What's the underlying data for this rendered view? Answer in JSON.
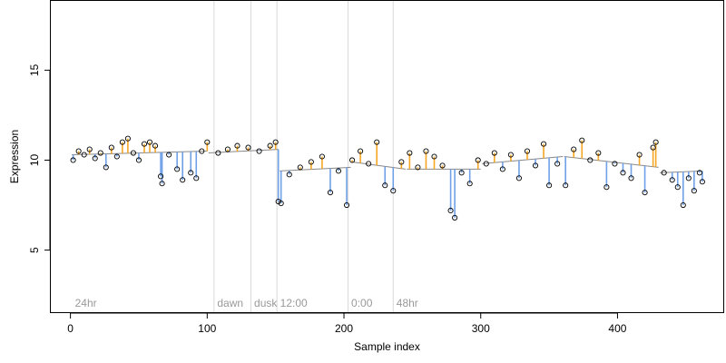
{
  "chart_data": {
    "type": "scatter",
    "title": "",
    "xlabel": "Sample index",
    "ylabel": "Expression",
    "xlim": [
      -15,
      478
    ],
    "ylim": [
      1.5,
      18.9
    ],
    "x_ticks": [
      0,
      100,
      200,
      300,
      400
    ],
    "y_ticks": [
      5,
      10,
      15
    ],
    "grid": false,
    "colors": {
      "points_edge": "#000000",
      "residual_positive": "#f5a623",
      "residual_negative": "#6fa0e8",
      "vertical_markers": "#d9d9d9",
      "annotation_text": "#999999"
    },
    "annotations": [
      {
        "label": "24hr",
        "x": 2
      },
      {
        "label": "dawn",
        "x": 106
      },
      {
        "label": "dusk",
        "x": 133
      },
      {
        "label": "12:00",
        "x": 152
      },
      {
        "label": "0:00",
        "x": 204
      },
      {
        "label": "48hr",
        "x": 237
      }
    ],
    "vertical_lines": [
      105,
      132,
      151,
      203,
      236
    ],
    "fit_segments": [
      {
        "x": [
          1,
          100
        ],
        "y": [
          10.3,
          10.5
        ]
      },
      {
        "x": [
          101,
          152
        ],
        "y": [
          10.4,
          10.6
        ]
      },
      {
        "x": [
          153,
          205
        ],
        "y": [
          9.4,
          9.6
        ]
      },
      {
        "x": [
          206,
          245
        ],
        "y": [
          9.9,
          9.5
        ]
      },
      {
        "x": [
          246,
          300
        ],
        "y": [
          9.5,
          9.5
        ]
      },
      {
        "x": [
          301,
          360
        ],
        "y": [
          9.8,
          10.2
        ]
      },
      {
        "x": [
          361,
          430
        ],
        "y": [
          10.2,
          9.6
        ]
      },
      {
        "x": [
          431,
          462
        ],
        "y": [
          9.3,
          9.4
        ]
      }
    ],
    "points_sampled": [
      {
        "x": 2,
        "y": 10.0
      },
      {
        "x": 6,
        "y": 10.5
      },
      {
        "x": 10,
        "y": 10.3
      },
      {
        "x": 14,
        "y": 10.6
      },
      {
        "x": 18,
        "y": 10.1
      },
      {
        "x": 22,
        "y": 10.4
      },
      {
        "x": 26,
        "y": 9.6
      },
      {
        "x": 30,
        "y": 10.7
      },
      {
        "x": 34,
        "y": 10.2
      },
      {
        "x": 38,
        "y": 11.0
      },
      {
        "x": 42,
        "y": 11.2
      },
      {
        "x": 46,
        "y": 10.4
      },
      {
        "x": 50,
        "y": 10.0
      },
      {
        "x": 54,
        "y": 10.9
      },
      {
        "x": 58,
        "y": 11.0
      },
      {
        "x": 62,
        "y": 10.8
      },
      {
        "x": 66,
        "y": 9.1
      },
      {
        "x": 67,
        "y": 8.7
      },
      {
        "x": 72,
        "y": 10.3
      },
      {
        "x": 78,
        "y": 9.5
      },
      {
        "x": 82,
        "y": 8.9
      },
      {
        "x": 88,
        "y": 9.3
      },
      {
        "x": 92,
        "y": 9.0
      },
      {
        "x": 96,
        "y": 10.5
      },
      {
        "x": 100,
        "y": 11.0
      },
      {
        "x": 108,
        "y": 10.4
      },
      {
        "x": 115,
        "y": 10.6
      },
      {
        "x": 122,
        "y": 10.8
      },
      {
        "x": 130,
        "y": 10.7
      },
      {
        "x": 138,
        "y": 10.5
      },
      {
        "x": 146,
        "y": 10.8
      },
      {
        "x": 150,
        "y": 11.0
      },
      {
        "x": 152,
        "y": 7.7
      },
      {
        "x": 154,
        "y": 7.6
      },
      {
        "x": 160,
        "y": 9.2
      },
      {
        "x": 168,
        "y": 9.6
      },
      {
        "x": 176,
        "y": 9.9
      },
      {
        "x": 184,
        "y": 10.2
      },
      {
        "x": 190,
        "y": 8.2
      },
      {
        "x": 196,
        "y": 9.4
      },
      {
        "x": 202,
        "y": 7.5
      },
      {
        "x": 206,
        "y": 10.0
      },
      {
        "x": 212,
        "y": 10.5
      },
      {
        "x": 218,
        "y": 9.8
      },
      {
        "x": 224,
        "y": 11.0
      },
      {
        "x": 230,
        "y": 8.6
      },
      {
        "x": 236,
        "y": 8.3
      },
      {
        "x": 242,
        "y": 9.9
      },
      {
        "x": 248,
        "y": 10.4
      },
      {
        "x": 254,
        "y": 9.6
      },
      {
        "x": 260,
        "y": 10.5
      },
      {
        "x": 266,
        "y": 10.2
      },
      {
        "x": 272,
        "y": 9.7
      },
      {
        "x": 278,
        "y": 7.2
      },
      {
        "x": 281,
        "y": 6.8
      },
      {
        "x": 286,
        "y": 9.3
      },
      {
        "x": 292,
        "y": 8.7
      },
      {
        "x": 298,
        "y": 10.0
      },
      {
        "x": 304,
        "y": 9.8
      },
      {
        "x": 310,
        "y": 10.4
      },
      {
        "x": 316,
        "y": 9.5
      },
      {
        "x": 322,
        "y": 10.3
      },
      {
        "x": 328,
        "y": 9.0
      },
      {
        "x": 334,
        "y": 10.5
      },
      {
        "x": 340,
        "y": 9.7
      },
      {
        "x": 346,
        "y": 10.9
      },
      {
        "x": 350,
        "y": 8.6
      },
      {
        "x": 356,
        "y": 9.8
      },
      {
        "x": 362,
        "y": 8.6
      },
      {
        "x": 368,
        "y": 10.6
      },
      {
        "x": 374,
        "y": 11.1
      },
      {
        "x": 380,
        "y": 10.0
      },
      {
        "x": 386,
        "y": 10.4
      },
      {
        "x": 392,
        "y": 8.5
      },
      {
        "x": 398,
        "y": 9.8
      },
      {
        "x": 404,
        "y": 9.3
      },
      {
        "x": 410,
        "y": 9.0
      },
      {
        "x": 416,
        "y": 10.3
      },
      {
        "x": 420,
        "y": 8.2
      },
      {
        "x": 426,
        "y": 10.7
      },
      {
        "x": 428,
        "y": 11.0
      },
      {
        "x": 434,
        "y": 9.3
      },
      {
        "x": 440,
        "y": 8.9
      },
      {
        "x": 444,
        "y": 8.5
      },
      {
        "x": 448,
        "y": 7.5
      },
      {
        "x": 452,
        "y": 9.0
      },
      {
        "x": 456,
        "y": 8.3
      },
      {
        "x": 460,
        "y": 9.3
      },
      {
        "x": 462,
        "y": 8.8
      }
    ]
  }
}
